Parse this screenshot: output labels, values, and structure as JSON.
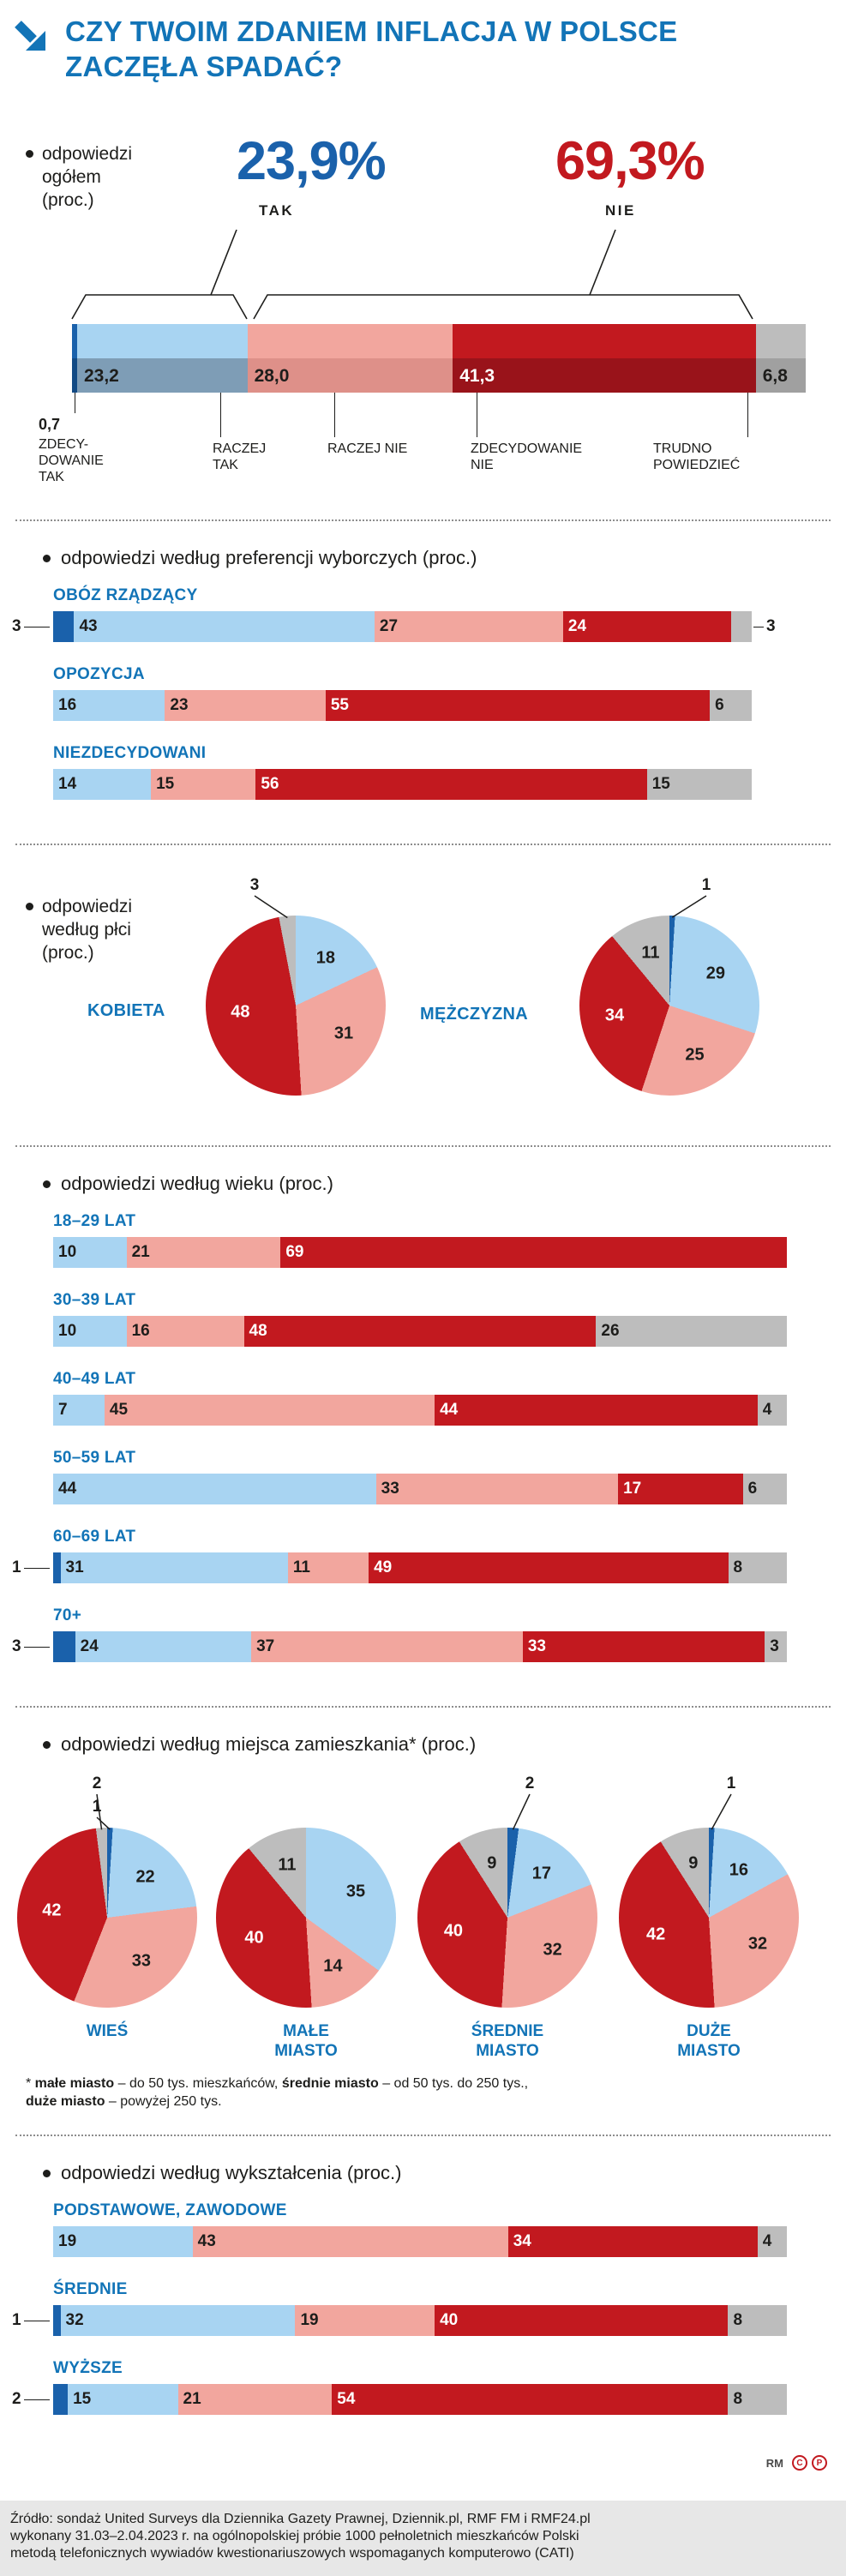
{
  "page": {
    "title_line1": "CZY TWOIM ZDANIEM INFLACJA W POLSCE",
    "title_line2": "ZACZĘŁA SPADAĆ?"
  },
  "colors": {
    "accent_blue": "#1274b7",
    "dark_blue": "#1a61ab",
    "light_blue": "#a8d4f2",
    "salmon": "#f2a69e",
    "red": "#c2191f",
    "gray": "#bdbdbd",
    "dark_blue_shade": "#124a84",
    "light_blue_shade": "#7e9db6",
    "salmon_shade": "#de9089",
    "red_shade": "#99131a",
    "gray_shade": "#a0a0a0",
    "text_dark": "#1d1d1b"
  },
  "answer_categories": [
    "ZDECYDOWANIE TAK",
    "RACZEJ TAK",
    "RACZEJ NIE",
    "ZDECYDOWANIE NIE",
    "TRUDNO POWIEDZIEĆ"
  ],
  "chart_data": [
    {
      "id": "overall",
      "type": "bar",
      "title": "odpowiedzi ogółem (proc.)",
      "unit": "percent",
      "categories": [
        "ZDECYDOWANIE TAK",
        "RACZEJ TAK",
        "RACZEJ NIE",
        "ZDECYDOWANIE NIE",
        "TRUDNO POWIEDZIEĆ"
      ],
      "values": [
        0.7,
        23.2,
        28.0,
        41.3,
        6.8
      ],
      "display": [
        "0,7",
        "23,2",
        "28,0",
        "41,3",
        "6,8"
      ],
      "totals": {
        "TAK": 23.9,
        "NIE": 69.3
      }
    },
    {
      "id": "preferences",
      "type": "bar",
      "title": "odpowiedzi według preferencji wyborczych (proc.)",
      "unit": "percent",
      "categories": [
        "ZDECYDOWANIE TAK",
        "RACZEJ TAK",
        "RACZEJ NIE",
        "ZDECYDOWANIE NIE",
        "TRUDNO POWIEDZIEĆ"
      ],
      "series": [
        {
          "name": "OBÓZ RZĄDZĄCY",
          "values": [
            3,
            43,
            27,
            24,
            3
          ]
        },
        {
          "name": "OPOZYCJA",
          "values": [
            0,
            16,
            23,
            55,
            6
          ]
        },
        {
          "name": "NIEZDECYDOWANI",
          "values": [
            0,
            14,
            15,
            56,
            15
          ]
        }
      ]
    },
    {
      "id": "gender",
      "type": "pie",
      "title": "odpowiedzi według płci (proc.)",
      "unit": "percent",
      "categories": [
        "ZDECYDOWANIE TAK",
        "RACZEJ TAK",
        "RACZEJ NIE",
        "ZDECYDOWANIE NIE",
        "TRUDNO POWIEDZIEĆ"
      ],
      "series": [
        {
          "name": "KOBIETA",
          "values": [
            0,
            18,
            31,
            48,
            3
          ]
        },
        {
          "name": "MĘŻCZYZNA",
          "values": [
            1,
            29,
            25,
            34,
            11
          ]
        }
      ]
    },
    {
      "id": "age",
      "type": "bar",
      "title": "odpowiedzi według wieku (proc.)",
      "unit": "percent",
      "categories": [
        "ZDECYDOWANIE TAK",
        "RACZEJ TAK",
        "RACZEJ NIE",
        "ZDECYDOWANIE NIE",
        "TRUDNO POWIEDZIEĆ"
      ],
      "series": [
        {
          "name": "18–29 LAT",
          "values": [
            0,
            10,
            21,
            69,
            0
          ]
        },
        {
          "name": "30–39 LAT",
          "values": [
            0,
            10,
            16,
            48,
            26
          ]
        },
        {
          "name": "40–49 LAT",
          "values": [
            0,
            7,
            45,
            44,
            4
          ]
        },
        {
          "name": "50–59 LAT",
          "values": [
            0,
            44,
            33,
            17,
            6
          ]
        },
        {
          "name": "60–69 LAT",
          "values": [
            1,
            31,
            11,
            49,
            8
          ]
        },
        {
          "name": "70+",
          "values": [
            3,
            24,
            37,
            33,
            3
          ]
        }
      ]
    },
    {
      "id": "residence",
      "type": "pie",
      "title": "odpowiedzi według miejsca zamieszkania* (proc.)",
      "unit": "percent",
      "categories": [
        "ZDECYDOWANIE TAK",
        "RACZEJ TAK",
        "RACZEJ NIE",
        "ZDECYDOWANIE NIE",
        "TRUDNO POWIEDZIEĆ"
      ],
      "series": [
        {
          "name": "WIEŚ",
          "values": [
            1,
            22,
            33,
            42,
            2
          ]
        },
        {
          "name": "MAŁE MIASTO",
          "values": [
            0,
            35,
            14,
            40,
            11
          ]
        },
        {
          "name": "ŚREDNIE MIASTO",
          "values": [
            2,
            17,
            32,
            40,
            9
          ]
        },
        {
          "name": "DUŻE MIASTO",
          "values": [
            1,
            16,
            32,
            42,
            9
          ]
        }
      ]
    },
    {
      "id": "education",
      "type": "bar",
      "title": "odpowiedzi według wykształcenia (proc.)",
      "unit": "percent",
      "categories": [
        "ZDECYDOWANIE TAK",
        "RACZEJ TAK",
        "RACZEJ NIE",
        "ZDECYDOWANIE NIE",
        "TRUDNO POWIEDZIEĆ"
      ],
      "series": [
        {
          "name": "PODSTAWOWE, ZAWODOWE",
          "values": [
            0,
            19,
            43,
            34,
            4
          ]
        },
        {
          "name": "ŚREDNIE",
          "values": [
            1,
            32,
            19,
            40,
            8
          ]
        },
        {
          "name": "WYŻSZE",
          "values": [
            2,
            15,
            21,
            54,
            8
          ]
        }
      ]
    }
  ],
  "overall_heading": {
    "l1": "odpowiedzi",
    "l2": "ogółem",
    "l3": "(proc.)"
  },
  "overall_summary": {
    "yes_value": "23,9%",
    "yes_label": "TAK",
    "no_value": "69,3%",
    "no_label": "NIE"
  },
  "overall_bar_labels": [
    {
      "value": "0,7",
      "lines": [
        "ZDECY-",
        "DOWANIE",
        "TAK"
      ]
    },
    {
      "lines": [
        "RACZEJ",
        "TAK"
      ]
    },
    {
      "lines": [
        "RACZEJ NIE"
      ]
    },
    {
      "lines": [
        "ZDECYDOWANIE",
        "NIE"
      ]
    },
    {
      "lines": [
        "TRUDNO",
        "POWIEDZIEĆ"
      ]
    }
  ],
  "section_headings": {
    "preferences": "odpowiedzi według preferencji wyborczych (proc.)",
    "gender": {
      "l1": "odpowiedzi",
      "l2": "według płci",
      "l3": "(proc.)"
    },
    "age": "odpowiedzi według wieku (proc.)",
    "residence": "odpowiedzi według miejsca zamieszkania* (proc.)",
    "education": "odpowiedzi według wykształcenia (proc.)"
  },
  "pie_labels": {
    "gender": [
      "KOBIETA",
      "MĘŻCZYZNA"
    ],
    "residence": [
      [
        "WIEŚ"
      ],
      [
        "MAŁE",
        "MIASTO"
      ],
      [
        "ŚREDNIE",
        "MIASTO"
      ],
      [
        "DUŻE",
        "MIASTO"
      ]
    ]
  },
  "footnote_lines": [
    [
      {
        "t": "* "
      },
      {
        "t": "małe miasto",
        "b": true
      },
      {
        "t": " – do 50 tys. mieszkańców, "
      },
      {
        "t": "średnie miasto",
        "b": true
      },
      {
        "t": " – od 50 tys. do 250 tys.,"
      }
    ],
    [
      {
        "t": "duże miasto",
        "b": true
      },
      {
        "t": " – powyżej 250 tys."
      }
    ]
  ],
  "credit": {
    "initials": "RM",
    "badges": [
      "C",
      "P"
    ]
  },
  "source_lines": [
    "Źródło: sondaż United Surveys dla Dziennika Gazety Prawnej, Dziennik.pl, RMF FM i RMF24.pl",
    "wykonany 31.03–2.04.2023 r. na ogólnopolskiej próbie 1000 pełnoletnich mieszkańców Polski",
    "metodą telefonicznych wywiadów kwestionariuszowych wspomaganych komputerowo (CATI)"
  ]
}
